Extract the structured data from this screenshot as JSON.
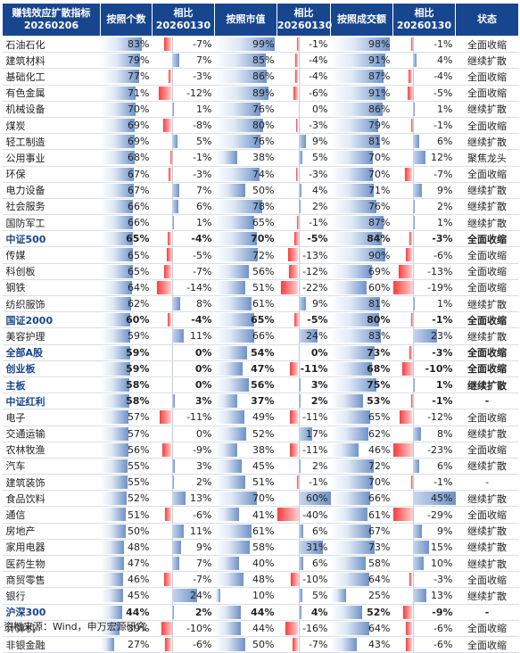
{
  "header": {
    "col1": [
      "赚钱效应扩散指标",
      "20260206"
    ],
    "col2": "按照个数",
    "col3": [
      "相比",
      "20260130"
    ],
    "col4": "按照市值",
    "col5": [
      "相比",
      "20260130"
    ],
    "col6": "按照成交额",
    "col7": [
      "相比",
      "20260130"
    ],
    "col8": "状态"
  },
  "rows": [
    {
      "name": "石油石化",
      "c": "83%",
      "cc": "-7%",
      "m": "99%",
      "mc": "-1%",
      "t": "98%",
      "tc": "-1%",
      "s": "全面收缩",
      "cv": 83,
      "ccv": -7,
      "mv": 99,
      "mcv": -1,
      "tv": 98,
      "tcv": -1,
      "b": false
    },
    {
      "name": "建筑材料",
      "c": "79%",
      "cc": "7%",
      "m": "85%",
      "mc": "-4%",
      "t": "91%",
      "tc": "4%",
      "s": "继续扩散",
      "cv": 79,
      "ccv": 7,
      "mv": 85,
      "mcv": -4,
      "tv": 91,
      "tcv": 4,
      "b": false
    },
    {
      "name": "基础化工",
      "c": "77%",
      "cc": "-3%",
      "m": "86%",
      "mc": "-4%",
      "t": "87%",
      "tc": "-4%",
      "s": "全面收缩",
      "cv": 77,
      "ccv": -3,
      "mv": 86,
      "mcv": -4,
      "tv": 87,
      "tcv": -4,
      "b": false
    },
    {
      "name": "有色金属",
      "c": "71%",
      "cc": "-12%",
      "m": "89%",
      "mc": "-6%",
      "t": "91%",
      "tc": "-5%",
      "s": "全面收缩",
      "cv": 71,
      "ccv": -12,
      "mv": 89,
      "mcv": -6,
      "tv": 91,
      "tcv": -5,
      "b": false
    },
    {
      "name": "机械设备",
      "c": "70%",
      "cc": "1%",
      "m": "76%",
      "mc": "0%",
      "t": "86%",
      "tc": "1%",
      "s": "继续扩散",
      "cv": 70,
      "ccv": 1,
      "mv": 76,
      "mcv": 0,
      "tv": 86,
      "tcv": 1,
      "b": false
    },
    {
      "name": "煤炭",
      "c": "69%",
      "cc": "-8%",
      "m": "80%",
      "mc": "-3%",
      "t": "79%",
      "tc": "-1%",
      "s": "全面收缩",
      "cv": 69,
      "ccv": -8,
      "mv": 80,
      "mcv": -3,
      "tv": 79,
      "tcv": -1,
      "b": false
    },
    {
      "name": "轻工制造",
      "c": "69%",
      "cc": "5%",
      "m": "76%",
      "mc": "9%",
      "t": "81%",
      "tc": "6%",
      "s": "继续扩散",
      "cv": 69,
      "ccv": 5,
      "mv": 76,
      "mcv": 9,
      "tv": 81,
      "tcv": 6,
      "b": false
    },
    {
      "name": "公用事业",
      "c": "68%",
      "cc": "-1%",
      "m": "38%",
      "mc": "5%",
      "t": "70%",
      "tc": "12%",
      "s": "聚焦龙头",
      "cv": 68,
      "ccv": -1,
      "mv": 38,
      "mcv": 5,
      "tv": 70,
      "tcv": 12,
      "b": false
    },
    {
      "name": "环保",
      "c": "67%",
      "cc": "-3%",
      "m": "74%",
      "mc": "-3%",
      "t": "70%",
      "tc": "-7%",
      "s": "全面收缩",
      "cv": 67,
      "ccv": -3,
      "mv": 74,
      "mcv": -3,
      "tv": 70,
      "tcv": -7,
      "b": false
    },
    {
      "name": "电力设备",
      "c": "67%",
      "cc": "7%",
      "m": "50%",
      "mc": "4%",
      "t": "71%",
      "tc": "9%",
      "s": "继续扩散",
      "cv": 67,
      "ccv": 7,
      "mv": 50,
      "mcv": 4,
      "tv": 71,
      "tcv": 9,
      "b": false
    },
    {
      "name": "社会服务",
      "c": "66%",
      "cc": "6%",
      "m": "78%",
      "mc": "2%",
      "t": "76%",
      "tc": "2%",
      "s": "继续扩散",
      "cv": 66,
      "ccv": 6,
      "mv": 78,
      "mcv": 2,
      "tv": 76,
      "tcv": 2,
      "b": false
    },
    {
      "name": "国防军工",
      "c": "66%",
      "cc": "1%",
      "m": "65%",
      "mc": "-1%",
      "t": "87%",
      "tc": "1%",
      "s": "继续扩散",
      "cv": 66,
      "ccv": 1,
      "mv": 65,
      "mcv": -1,
      "tv": 87,
      "tcv": 1,
      "b": false
    },
    {
      "name": "中证500",
      "c": "65%",
      "cc": "-4%",
      "m": "70%",
      "mc": "-5%",
      "t": "84%",
      "tc": "-3%",
      "s": "全面收缩",
      "cv": 65,
      "ccv": -4,
      "mv": 70,
      "mcv": -5,
      "tv": 84,
      "tcv": -3,
      "b": true
    },
    {
      "name": "传媒",
      "c": "65%",
      "cc": "-5%",
      "m": "72%",
      "mc": "-13%",
      "t": "90%",
      "tc": "-6%",
      "s": "全面收缩",
      "cv": 65,
      "ccv": -5,
      "mv": 72,
      "mcv": -13,
      "tv": 90,
      "tcv": -6,
      "b": false
    },
    {
      "name": "科创板",
      "c": "65%",
      "cc": "-7%",
      "m": "56%",
      "mc": "-12%",
      "t": "69%",
      "tc": "-13%",
      "s": "全面收缩",
      "cv": 65,
      "ccv": -7,
      "mv": 56,
      "mcv": -12,
      "tv": 69,
      "tcv": -13,
      "b": false
    },
    {
      "name": "钢铁",
      "c": "64%",
      "cc": "-14%",
      "m": "51%",
      "mc": "-22%",
      "t": "60%",
      "tc": "-19%",
      "s": "全面收缩",
      "cv": 64,
      "ccv": -14,
      "mv": 51,
      "mcv": -22,
      "tv": 60,
      "tcv": -19,
      "b": false
    },
    {
      "name": "纺织服饰",
      "c": "62%",
      "cc": "8%",
      "m": "61%",
      "mc": "9%",
      "t": "81%",
      "tc": "1%",
      "s": "继续扩散",
      "cv": 62,
      "ccv": 8,
      "mv": 61,
      "mcv": 9,
      "tv": 81,
      "tcv": 1,
      "b": false
    },
    {
      "name": "国证2000",
      "c": "60%",
      "cc": "-4%",
      "m": "65%",
      "mc": "-5%",
      "t": "80%",
      "tc": "-1%",
      "s": "全面收缩",
      "cv": 60,
      "ccv": -4,
      "mv": 65,
      "mcv": -5,
      "tv": 80,
      "tcv": -1,
      "b": true
    },
    {
      "name": "美容护理",
      "c": "59%",
      "cc": "11%",
      "m": "66%",
      "mc": "24%",
      "t": "83%",
      "tc": "23%",
      "s": "继续扩散",
      "cv": 59,
      "ccv": 11,
      "mv": 66,
      "mcv": 24,
      "tv": 83,
      "tcv": 23,
      "b": false
    },
    {
      "name": "全部A股",
      "c": "59%",
      "cc": "0%",
      "m": "54%",
      "mc": "0%",
      "t": "73%",
      "tc": "-3%",
      "s": "全面收缩",
      "cv": 59,
      "ccv": 0,
      "mv": 54,
      "mcv": 0,
      "tv": 73,
      "tcv": -3,
      "b": true
    },
    {
      "name": "创业板",
      "c": "59%",
      "cc": "0%",
      "m": "47%",
      "mc": "-11%",
      "t": "68%",
      "tc": "-10%",
      "s": "全面收缩",
      "cv": 59,
      "ccv": 0,
      "mv": 47,
      "mcv": -11,
      "tv": 68,
      "tcv": -10,
      "b": true
    },
    {
      "name": "主板",
      "c": "58%",
      "cc": "0%",
      "m": "56%",
      "mc": "3%",
      "t": "75%",
      "tc": "1%",
      "s": "继续扩散",
      "cv": 58,
      "ccv": 0,
      "mv": 56,
      "mcv": 3,
      "tv": 75,
      "tcv": 1,
      "b": true
    },
    {
      "name": "中证红利",
      "c": "58%",
      "cc": "3%",
      "m": "37%",
      "mc": "2%",
      "t": "53%",
      "tc": "-1%",
      "s": "-",
      "cv": 58,
      "ccv": 3,
      "mv": 37,
      "mcv": 2,
      "tv": 53,
      "tcv": -1,
      "b": true
    },
    {
      "name": "电子",
      "c": "57%",
      "cc": "-11%",
      "m": "49%",
      "mc": "-11%",
      "t": "65%",
      "tc": "-12%",
      "s": "全面收缩",
      "cv": 57,
      "ccv": -11,
      "mv": 49,
      "mcv": -11,
      "tv": 65,
      "tcv": -12,
      "b": false
    },
    {
      "name": "交通运输",
      "c": "57%",
      "cc": "0%",
      "m": "52%",
      "mc": "17%",
      "t": "62%",
      "tc": "8%",
      "s": "继续扩散",
      "cv": 57,
      "ccv": 0,
      "mv": 52,
      "mcv": 17,
      "tv": 62,
      "tcv": 8,
      "b": false
    },
    {
      "name": "农林牧渔",
      "c": "56%",
      "cc": "-9%",
      "m": "38%",
      "mc": "-11%",
      "t": "46%",
      "tc": "-23%",
      "s": "全面收缩",
      "cv": 56,
      "ccv": -9,
      "mv": 38,
      "mcv": -11,
      "tv": 46,
      "tcv": -23,
      "b": false
    },
    {
      "name": "汽车",
      "c": "55%",
      "cc": "3%",
      "m": "45%",
      "mc": "2%",
      "t": "72%",
      "tc": "6%",
      "s": "继续扩散",
      "cv": 55,
      "ccv": 3,
      "mv": 45,
      "mcv": 2,
      "tv": 72,
      "tcv": 6,
      "b": false
    },
    {
      "name": "建筑装饰",
      "c": "55%",
      "cc": "2%",
      "m": "51%",
      "mc": "-1%",
      "t": "70%",
      "tc": "-1%",
      "s": "-",
      "cv": 55,
      "ccv": 2,
      "mv": 51,
      "mcv": -1,
      "tv": 70,
      "tcv": -1,
      "b": false
    },
    {
      "name": "食品饮料",
      "c": "52%",
      "cc": "13%",
      "m": "70%",
      "mc": "60%",
      "t": "66%",
      "tc": "45%",
      "s": "继续扩散",
      "cv": 52,
      "ccv": 13,
      "mv": 70,
      "mcv": 60,
      "tv": 66,
      "tcv": 45,
      "b": false
    },
    {
      "name": "通信",
      "c": "51%",
      "cc": "-6%",
      "m": "41%",
      "mc": "-40%",
      "t": "61%",
      "tc": "-29%",
      "s": "全面收缩",
      "cv": 51,
      "ccv": -6,
      "mv": 41,
      "mcv": -40,
      "tv": 61,
      "tcv": -29,
      "b": false
    },
    {
      "name": "房地产",
      "c": "50%",
      "cc": "11%",
      "m": "61%",
      "mc": "6%",
      "t": "67%",
      "tc": "9%",
      "s": "继续扩散",
      "cv": 50,
      "ccv": 11,
      "mv": 61,
      "mcv": 6,
      "tv": 67,
      "tcv": 9,
      "b": false
    },
    {
      "name": "家用电器",
      "c": "48%",
      "cc": "9%",
      "m": "58%",
      "mc": "31%",
      "t": "73%",
      "tc": "15%",
      "s": "继续扩散",
      "cv": 48,
      "ccv": 9,
      "mv": 58,
      "mcv": 31,
      "tv": 73,
      "tcv": 15,
      "b": false
    },
    {
      "name": "医药生物",
      "c": "47%",
      "cc": "7%",
      "m": "40%",
      "mc": "6%",
      "t": "58%",
      "tc": "10%",
      "s": "继续扩散",
      "cv": 47,
      "ccv": 7,
      "mv": 40,
      "mcv": 6,
      "tv": 58,
      "tcv": 10,
      "b": false
    },
    {
      "name": "商贸零售",
      "c": "46%",
      "cc": "-7%",
      "m": "48%",
      "mc": "-10%",
      "t": "64%",
      "tc": "-3%",
      "s": "全面收缩",
      "cv": 46,
      "ccv": -7,
      "mv": 48,
      "mcv": -10,
      "tv": 64,
      "tcv": -3,
      "b": false
    },
    {
      "name": "银行",
      "c": "45%",
      "cc": "24%",
      "m": "10%",
      "mc": "5%",
      "t": "25%",
      "tc": "13%",
      "s": "继续扩散",
      "cv": 45,
      "ccv": 24,
      "mv": 10,
      "mcv": 5,
      "tv": 25,
      "tcv": 13,
      "b": false
    },
    {
      "name": "沪深300",
      "c": "44%",
      "cc": "2%",
      "m": "44%",
      "mc": "4%",
      "t": "52%",
      "tc": "-9%",
      "s": "-",
      "cv": 44,
      "ccv": 2,
      "mv": 44,
      "mcv": 4,
      "tv": 52,
      "tcv": -9,
      "b": true
    },
    {
      "name": "计算机",
      "c": "39%",
      "cc": "-10%",
      "m": "44%",
      "mc": "-16%",
      "t": "64%",
      "tc": "-6%",
      "s": "全面收缩",
      "cv": 39,
      "ccv": -10,
      "mv": 44,
      "mcv": -16,
      "tv": 64,
      "tcv": -6,
      "b": false
    },
    {
      "name": "非银金融",
      "c": "27%",
      "cc": "-6%",
      "m": "50%",
      "mc": "-7%",
      "t": "43%",
      "tc": "-6%",
      "s": "全面收缩",
      "cv": 27,
      "ccv": -6,
      "mv": 50,
      "mcv": -7,
      "tv": 43,
      "tcv": -6,
      "b": false
    }
  ],
  "colors": {
    "header": "#17468f",
    "neg": "#ff3b3b",
    "pos": "#6e92c8"
  },
  "footer": "资料来源：Wind，申万宏源研究"
}
